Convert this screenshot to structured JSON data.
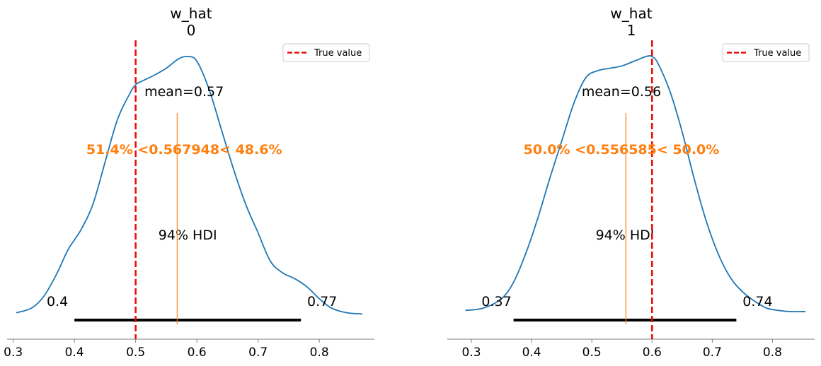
{
  "chart_data": [
    {
      "type": "area",
      "title": "w_hat\n0",
      "title_lines": [
        "w_hat",
        "0"
      ],
      "xlim": [
        0.29,
        0.89
      ],
      "ylim": [
        0,
        1.1
      ],
      "x_ticks": [
        0.3,
        0.4,
        0.5,
        0.6,
        0.7,
        0.8
      ],
      "x_tick_labels": [
        "0.3",
        "0.4",
        "0.5",
        "0.6",
        "0.7",
        "0.8"
      ],
      "density": {
        "x": [
          0.305,
          0.33,
          0.35,
          0.37,
          0.39,
          0.41,
          0.43,
          0.45,
          0.47,
          0.49,
          0.5,
          0.51,
          0.53,
          0.55,
          0.57,
          0.585,
          0.6,
          0.62,
          0.64,
          0.66,
          0.68,
          0.7,
          0.72,
          0.74,
          0.76,
          0.78,
          0.8,
          0.82,
          0.845,
          0.87
        ],
        "y": [
          0.01,
          0.03,
          0.08,
          0.17,
          0.28,
          0.36,
          0.47,
          0.65,
          0.83,
          0.94,
          0.98,
          0.995,
          1.02,
          1.05,
          1.09,
          1.1,
          1.08,
          0.96,
          0.79,
          0.62,
          0.47,
          0.35,
          0.23,
          0.18,
          0.155,
          0.12,
          0.07,
          0.03,
          0.01,
          0.005
        ],
        "color": "#1f77b4"
      },
      "true_value": 0.5,
      "true_value_color": "#e8090a",
      "mean_label": "mean=0.57",
      "ref_label": "51.4% <0.567948< 48.6%",
      "ref_value": 0.567948,
      "ref_color": "#ff7f0e",
      "hdi_label": "94% HDI",
      "hdi": [
        0.4,
        0.77
      ],
      "hdi_low_label": "0.4",
      "hdi_high_label": "0.77",
      "legend": {
        "label": "True value",
        "position": "top-right"
      }
    },
    {
      "type": "area",
      "title": "w_hat\n1",
      "title_lines": [
        "w_hat",
        "1"
      ],
      "xlim": [
        0.26,
        0.87
      ],
      "ylim": [
        0,
        1.1
      ],
      "x_ticks": [
        0.3,
        0.4,
        0.5,
        0.6,
        0.7,
        0.8
      ],
      "x_tick_labels": [
        "0.3",
        "0.4",
        "0.5",
        "0.6",
        "0.7",
        "0.8"
      ],
      "density": {
        "x": [
          0.29,
          0.32,
          0.35,
          0.37,
          0.39,
          0.41,
          0.43,
          0.45,
          0.47,
          0.49,
          0.51,
          0.53,
          0.55,
          0.57,
          0.59,
          0.6,
          0.61,
          0.63,
          0.65,
          0.67,
          0.69,
          0.71,
          0.73,
          0.75,
          0.77,
          0.79,
          0.81,
          0.83,
          0.855
        ],
        "y": [
          0.02,
          0.03,
          0.07,
          0.14,
          0.26,
          0.41,
          0.58,
          0.74,
          0.9,
          1.01,
          1.04,
          1.05,
          1.06,
          1.08,
          1.1,
          1.1,
          1.07,
          0.95,
          0.78,
          0.58,
          0.4,
          0.26,
          0.16,
          0.1,
          0.06,
          0.03,
          0.02,
          0.015,
          0.015
        ],
        "color": "#1f77b4"
      },
      "true_value": 0.6,
      "true_value_color": "#e8090a",
      "mean_label": "mean=0.56",
      "ref_label": "50.0% <0.556585< 50.0%",
      "ref_value": 0.556585,
      "ref_color": "#ff7f0e",
      "hdi_label": "94% HDI",
      "hdi": [
        0.37,
        0.74
      ],
      "hdi_low_label": "0.37",
      "hdi_high_label": "0.74",
      "legend": {
        "label": "True value",
        "position": "top-right"
      }
    }
  ]
}
